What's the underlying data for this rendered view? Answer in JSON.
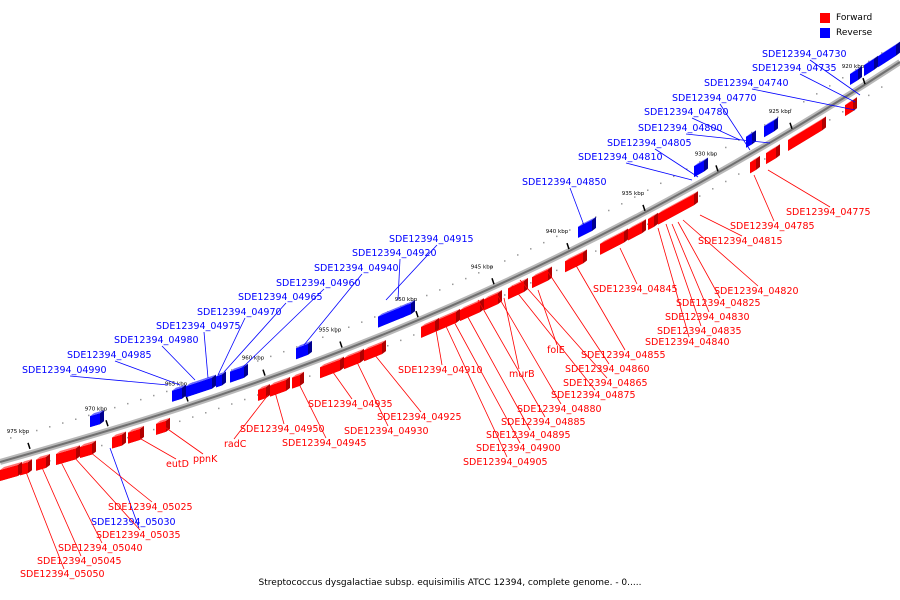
{
  "legend": {
    "forward_label": "Forward",
    "reverse_label": "Reverse",
    "forward_color": "#ff0000",
    "reverse_color": "#0000ff"
  },
  "caption": "Streptococcus dysgalactiae subsp. equisimilis ATCC 12394, complete genome. - 0.....",
  "axis": {
    "ticks": [
      "920 kbp",
      "925 kbp",
      "930 kbp",
      "935 kbp",
      "940 kbp",
      "945 kbp",
      "950 kbp",
      "955 kbp",
      "960 kbp",
      "965 kbp",
      "970 kbp",
      "975 kbp"
    ]
  },
  "reverse_labels": [
    "SDE12394_04730",
    "SDE12394_04735",
    "SDE12394_04740",
    "SDE12394_04770",
    "SDE12394_04780",
    "SDE12394_04800",
    "SDE12394_04805",
    "SDE12394_04810",
    "SDE12394_04850",
    "SDE12394_04915",
    "SDE12394_04920",
    "SDE12394_04940",
    "SDE12394_04960",
    "SDE12394_04965",
    "SDE12394_04970",
    "SDE12394_04975",
    "SDE12394_04980",
    "SDE12394_04985",
    "SDE12394_04990",
    "SDE12394_05030"
  ],
  "forward_labels": [
    "SDE12394_04775",
    "SDE12394_04785",
    "SDE12394_04815",
    "SDE12394_04820",
    "SDE12394_04825",
    "SDE12394_04830",
    "SDE12394_04835",
    "SDE12394_04840",
    "SDE12394_04845",
    "SDE12394_04855",
    "SDE12394_04860",
    "folE",
    "SDE12394_04865",
    "SDE12394_04875",
    "murB",
    "SDE12394_04880",
    "SDE12394_04885",
    "SDE12394_04895",
    "SDE12394_04900",
    "SDE12394_04905",
    "SDE12394_04910",
    "SDE12394_04925",
    "SDE12394_04930",
    "SDE12394_04935",
    "SDE12394_04945",
    "SDE12394_04950",
    "radC",
    "ppnK",
    "eutD",
    "SDE12394_05025",
    "SDE12394_05035",
    "SDE12394_05040",
    "SDE12394_05045",
    "SDE12394_05050"
  ]
}
